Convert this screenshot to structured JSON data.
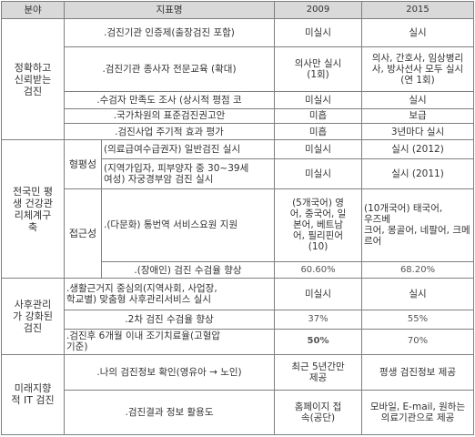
{
  "header": {
    "col_area": "분야",
    "col_indicator": "지표명",
    "col_2009": "2009",
    "col_2015": "2015"
  },
  "groups": [
    {
      "area": "정확하고\n신뢰받는\n검진",
      "rows": [
        {
          "indicator": ".검진기관 인증제(출장검진 포함)",
          "v2009": "미실시",
          "v2015": "실시"
        },
        {
          "indicator": ".검진기관 종사자 전문교육 (확대)",
          "v2009": "의사만 실시\n(1회)",
          "v2015": "의사, 간호사, 임상병리\n사, 방사선사 모두 실시\n(연 1회)"
        },
        {
          "indicator": ".수검자 만족도 조사 (상시적 평점 코",
          "v2009": "미실시",
          "v2015": "실시"
        },
        {
          "indicator": ".국가차원의 표준검진권고안",
          "v2009": "미흡",
          "v2015": "보급"
        },
        {
          "indicator": ".검진사업 주기적 효과 평가",
          "v2009": "미흡",
          "v2015": "3년마다 실시"
        }
      ]
    },
    {
      "area": "전국민 평\n생 건강관\n리체계구\n축",
      "subgroups": [
        {
          "name": "형평성",
          "rows": [
            {
              "indicator": "(의료급여수급권자) 일반검진 실시",
              "v2009": "미실시",
              "v2015": "실시 (2012)"
            },
            {
              "indicator": "(지역가입자, 피부양자 중 30~39세\n여성) 자궁경부암 검진 실시",
              "v2009": "미실시",
              "v2015": "실시 (2011)"
            }
          ]
        },
        {
          "name": "접근성",
          "rows": [
            {
              "indicator": ".(다문화) 통번역 서비스요원 지원",
              "v2009": "(5개국어) 영\n어, 중국어, 일\n본어, 베트남\n어, 필리핀어\n(10)",
              "v2015": "(10개국어) 태국어, 우즈베\n크어, 몽골어, 네팔어, 크메\n르어"
            },
            {
              "indicator": ".(장애인) 검진 수검율 향상",
              "v2009": "60.60%",
              "v2015": "68.20%"
            }
          ]
        }
      ]
    },
    {
      "area": "사후관리\n가 강화된\n검진",
      "rows": [
        {
          "indicator": ".생활근거지 중심의(지역사회, 사업장,\n학교별) 맞춤형 사후관리서비스 실시",
          "v2009": "미실시",
          "v2015": "실시"
        },
        {
          "indicator": ".2차 검진 수검율 향상",
          "v2009": "37%",
          "v2015": "55%"
        },
        {
          "indicator": ".검진후 6개월 이내 조기치료율(고혈압\n기준)",
          "v2009": "50%",
          "v2015": "70%"
        }
      ]
    },
    {
      "area": "미래지향\n적 IT 검진",
      "rows": [
        {
          "indicator": ".나의 검진정보 확인(영유아 → 노인)",
          "v2009": "최근 5년간만\n제공",
          "v2015": "평생 검진정보 제공"
        },
        {
          "indicator": ".검진결과 정보 활용도",
          "v2009": "홈페이지 접\n속(공단)",
          "v2015": "모바일, E-mail, 원하는\n의료기관으로 제공"
        }
      ]
    }
  ]
}
